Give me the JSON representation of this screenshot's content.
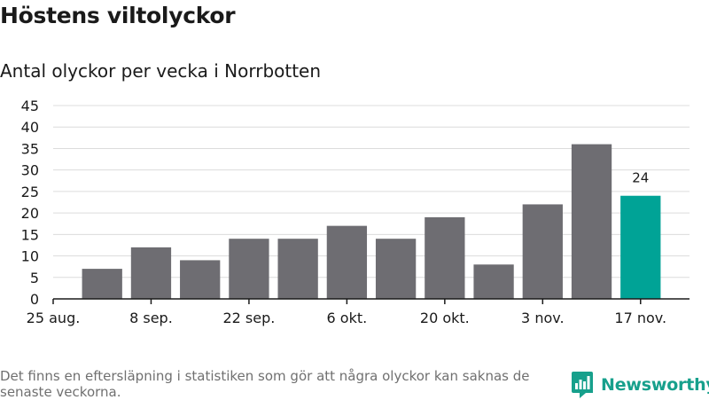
{
  "title": "Höstens viltolyckor",
  "subtitle": "Antal olyckor per vecka i Norrbotten",
  "footnote": "Det finns en eftersläpning i statistiken som gör att några olyckor kan saknas de senaste veckorna.",
  "brand": {
    "name": "Newsworthy",
    "icon": "newsworthy-logo-icon",
    "color": "#17a08c"
  },
  "colors": {
    "bar": "#6e6d72",
    "highlight": "#00a396",
    "grid": "#dcdcdc",
    "axis": "#1a1a1a"
  },
  "chart_data": {
    "type": "bar",
    "title": "Antal olyckor per vecka i Norrbotten",
    "xlabel": "",
    "ylabel": "",
    "categories": [
      "25 aug.",
      "1 sep.",
      "8 sep.",
      "15 sep.",
      "22 sep.",
      "29 sep.",
      "6 okt.",
      "13 okt.",
      "20 okt.",
      "27 okt.",
      "3 nov.",
      "10 nov.",
      "17 nov."
    ],
    "values": [
      0,
      7,
      12,
      9,
      14,
      14,
      17,
      14,
      19,
      8,
      22,
      36,
      24
    ],
    "x_tick_labels": [
      "25 aug.",
      "8 sep.",
      "22 sep.",
      "6 okt.",
      "20 okt.",
      "3 nov.",
      "17 nov."
    ],
    "y_ticks": [
      0,
      5,
      10,
      15,
      20,
      25,
      30,
      35,
      40,
      45
    ],
    "ylim": [
      0,
      45
    ],
    "highlight_index": 12,
    "data_labels": [
      {
        "index": 12,
        "text": "24"
      }
    ],
    "grid": true,
    "legend": "none"
  }
}
